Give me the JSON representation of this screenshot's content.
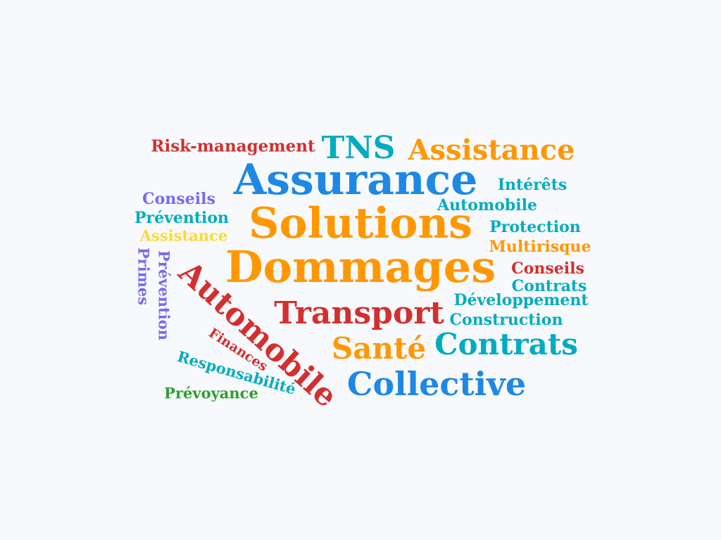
{
  "colors": {
    "background": "#f8f9fc",
    "red": "#d32f2f",
    "teal": "#00acc1",
    "orange": "#ff9800",
    "blue": "#1e88e5",
    "purple": "#7b68ee",
    "yellow": "#fdd835",
    "green": "#2e9e2e"
  },
  "words": {
    "risk_management": "Risk-management",
    "tns": "TNS",
    "assistance_top": "Assistance",
    "assurance": "Assurance",
    "interets": "Intérêts",
    "conseils_left": "Conseils",
    "automobile_small": "Automobile",
    "prevention_left": "Prévention",
    "solutions": "Solutions",
    "protection": "Protection",
    "assistance_small": "Assistance",
    "multirisque": "Multirisque",
    "primes": "Primes",
    "prevention_vertical": "Prévention",
    "dommages": "Dommages",
    "conseils_right": "Conseils",
    "contrats_small": "Contrats",
    "automobile_big": "Automobile",
    "developpement": "Développement",
    "transport": "Transport",
    "construction": "Construction",
    "finances": "Finances",
    "sante": "Santé",
    "contrats_big": "Contrats",
    "responsabilite": "Responsabilité",
    "collective": "Collective",
    "prevoyance": "Prévoyance"
  }
}
